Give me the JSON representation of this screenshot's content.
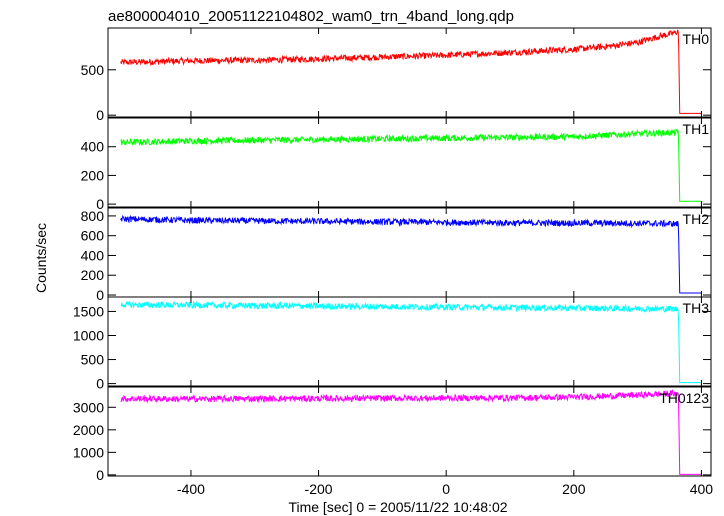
{
  "chart_data": {
    "type": "line",
    "title": "ae800004010_20051122104802_wam0_trn_4band_long.qdp",
    "xlabel": "Time [sec] 0 = 2005/11/22 10:48:02",
    "ylabel": "Counts/sec",
    "xlim": [
      -530,
      415
    ],
    "x_ticks": [
      -400,
      -200,
      0,
      200,
      400
    ],
    "grid": false,
    "panels": [
      {
        "name": "TH0",
        "color": "#ff0000",
        "ylim": [
          -20,
          960
        ],
        "y_ticks": [
          0,
          500
        ],
        "x": [
          -510,
          -400,
          -300,
          -200,
          -100,
          0,
          100,
          200,
          250,
          300,
          330,
          360,
          364,
          366,
          370,
          400
        ],
        "values": [
          580,
          600,
          605,
          620,
          640,
          660,
          690,
          725,
          755,
          800,
          860,
          910,
          930,
          20,
          20,
          20
        ]
      },
      {
        "name": "TH1",
        "color": "#00ff00",
        "ylim": [
          -20,
          600
        ],
        "y_ticks": [
          0,
          200,
          400
        ],
        "x": [
          -510,
          -400,
          -300,
          -200,
          -100,
          0,
          100,
          200,
          300,
          364,
          366,
          370,
          400
        ],
        "values": [
          430,
          440,
          445,
          450,
          455,
          460,
          465,
          470,
          490,
          500,
          20,
          20,
          20
        ]
      },
      {
        "name": "TH2",
        "color": "#0000ff",
        "ylim": [
          -20,
          880
        ],
        "y_ticks": [
          0,
          200,
          400,
          600,
          800
        ],
        "x": [
          -510,
          -400,
          -300,
          -200,
          -100,
          0,
          100,
          200,
          300,
          364,
          366,
          370,
          400
        ],
        "values": [
          770,
          755,
          750,
          745,
          740,
          735,
          730,
          728,
          725,
          720,
          20,
          20,
          20
        ]
      },
      {
        "name": "TH3",
        "color": "#00ffff",
        "ylim": [
          -50,
          1800
        ],
        "y_ticks": [
          0,
          500,
          1000,
          1500
        ],
        "x": [
          -510,
          -400,
          -300,
          -200,
          -100,
          0,
          100,
          200,
          300,
          364,
          366,
          370,
          400
        ],
        "values": [
          1640,
          1630,
          1620,
          1610,
          1600,
          1590,
          1580,
          1570,
          1560,
          1550,
          20,
          20,
          20
        ]
      },
      {
        "name": "TH0123",
        "color": "#ff00ff",
        "ylim": [
          -50,
          3900
        ],
        "y_ticks": [
          0,
          1000,
          2000,
          3000
        ],
        "x": [
          -510,
          -400,
          -300,
          -200,
          -100,
          0,
          100,
          200,
          300,
          364,
          366,
          370,
          400
        ],
        "values": [
          3380,
          3370,
          3380,
          3390,
          3400,
          3410,
          3420,
          3450,
          3540,
          3620,
          20,
          20,
          20
        ]
      }
    ]
  }
}
